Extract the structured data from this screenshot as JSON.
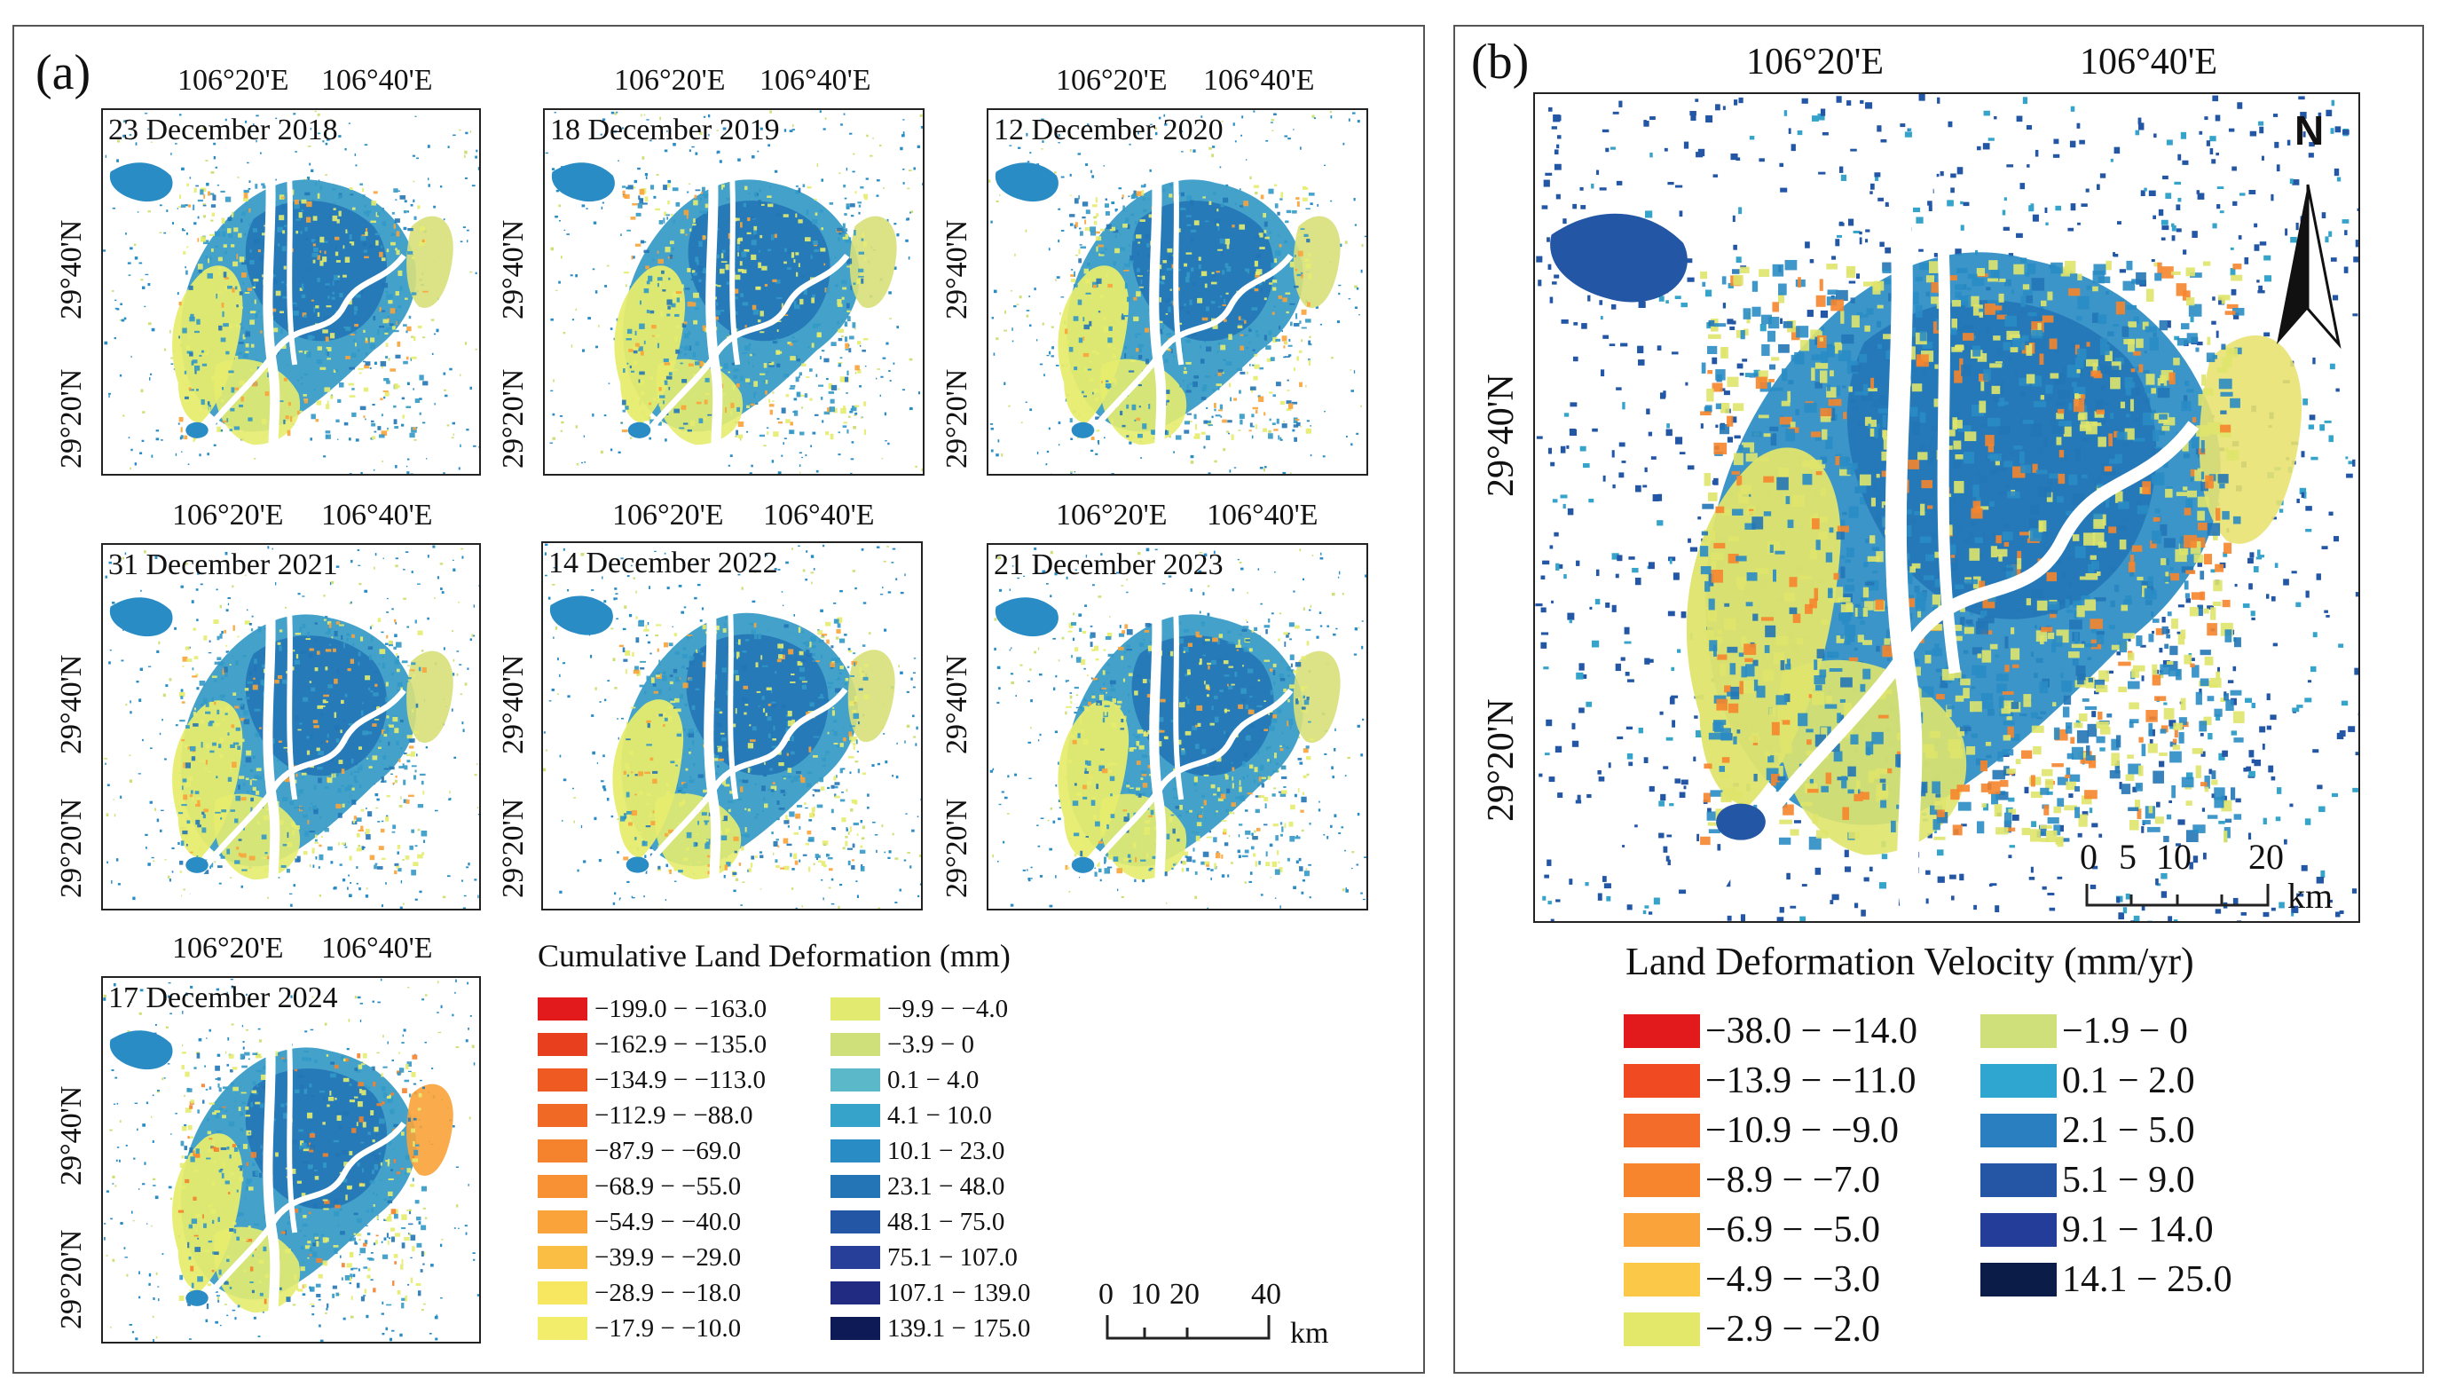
{
  "panel_a": {
    "label": "(a)",
    "lon_labels": [
      "106°20'E",
      "106°40'E"
    ],
    "lat_labels": [
      "29°40'N",
      "29°20'N"
    ],
    "dates": [
      "23 December 2018",
      "18 December 2019",
      "12 December 2020",
      "31 December 2021",
      "14 December 2022",
      "21 December 2023",
      "17 December 2024"
    ],
    "legend": {
      "title": "Cumulative Land Deformation (mm)",
      "items": [
        {
          "label": "−199.0 − −163.0",
          "color": "#e31a1c"
        },
        {
          "label": "−162.9 − −135.0",
          "color": "#e8401e"
        },
        {
          "label": "−134.9 − −113.0",
          "color": "#ee5a22"
        },
        {
          "label": "−112.9 − −88.0",
          "color": "#f06a26"
        },
        {
          "label": "−87.9 − −69.0",
          "color": "#f5822c"
        },
        {
          "label": "−68.9 − −55.0",
          "color": "#f89034"
        },
        {
          "label": "−54.9 − −40.0",
          "color": "#f9a33a"
        },
        {
          "label": "−39.9 − −29.0",
          "color": "#fbbe45"
        },
        {
          "label": "−28.9 − −18.0",
          "color": "#f7e760"
        },
        {
          "label": "−17.9 − −10.0",
          "color": "#f2ee6c"
        },
        {
          "label": "−9.9 − −4.0",
          "color": "#e3ea70"
        },
        {
          "label": "−3.9 − 0",
          "color": "#cfe07a"
        },
        {
          "label": "0.1 − 4.0",
          "color": "#5ab8c8"
        },
        {
          "label": "4.1 − 10.0",
          "color": "#36a3cb"
        },
        {
          "label": "10.1 − 23.0",
          "color": "#2a8cc4"
        },
        {
          "label": "23.1 − 48.0",
          "color": "#2475b6"
        },
        {
          "label": "48.1 − 75.0",
          "color": "#2357a5"
        },
        {
          "label": "75.1 − 107.0",
          "color": "#273f98"
        },
        {
          "label": "107.1 − 139.0",
          "color": "#222b82"
        },
        {
          "label": "139.1 − 175.0",
          "color": "#0d1a55"
        }
      ]
    },
    "scalebar": {
      "ticks": [
        "0",
        "10",
        "20",
        "40"
      ],
      "unit": "km"
    }
  },
  "panel_b": {
    "label": "(b)",
    "lon_labels": [
      "106°20'E",
      "106°40'E"
    ],
    "lat_labels": [
      "29°40'N",
      "29°20'N"
    ],
    "north": "N",
    "legend": {
      "title": "Land Deformation Velocity (mm/yr)",
      "items": [
        {
          "label": "−38.0 − −14.0",
          "color": "#e31a1c"
        },
        {
          "label": "−13.9 − −11.0",
          "color": "#ef4a22"
        },
        {
          "label": "−10.9 − −9.0",
          "color": "#f36c2a"
        },
        {
          "label": "−8.9 − −7.0",
          "color": "#f6852e"
        },
        {
          "label": "−6.9 − −5.0",
          "color": "#f9a33a"
        },
        {
          "label": "−4.9 − −3.0",
          "color": "#fcc847"
        },
        {
          "label": "−2.9 − −2.0",
          "color": "#e4e86a"
        },
        {
          "label": "−1.9 − 0",
          "color": "#cfe07a"
        },
        {
          "label": "0.1 − 2.0",
          "color": "#2fa6cf"
        },
        {
          "label": "2.1 − 5.0",
          "color": "#2a7fc0"
        },
        {
          "label": "5.1 − 9.0",
          "color": "#2556a6"
        },
        {
          "label": "9.1 − 14.0",
          "color": "#243d98"
        },
        {
          "label": "14.1 − 25.0",
          "color": "#0a1c47"
        }
      ]
    },
    "scalebar": {
      "ticks": [
        "0",
        "5",
        "10",
        "20"
      ],
      "unit": "km"
    }
  }
}
